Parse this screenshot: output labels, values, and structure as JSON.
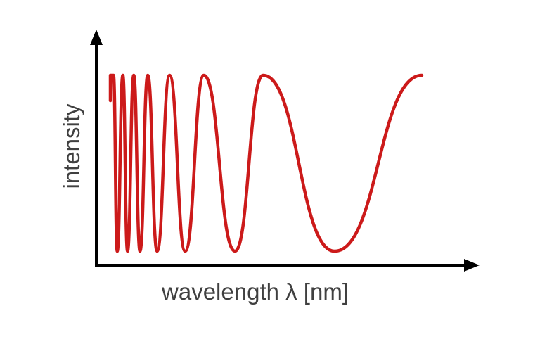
{
  "chart_data": {
    "type": "line",
    "title": "",
    "xlabel": "wavelength λ [nm]",
    "ylabel": "intensity",
    "x_ticks": [],
    "y_ticks": [],
    "grid": false,
    "legend": "none",
    "description_of_shape": "oscillation whose period grows with wavelength",
    "series": [
      {
        "color": "#cc1a1a",
        "peaks_relative_x": [
          0.0,
          0.01,
          0.04,
          0.075,
          0.12,
          0.19,
          0.3,
          0.49,
          1.0
        ],
        "troughs_relative_x": [
          0.022,
          0.055,
          0.095,
          0.15,
          0.24,
          0.4,
          0.72
        ]
      }
    ]
  }
}
